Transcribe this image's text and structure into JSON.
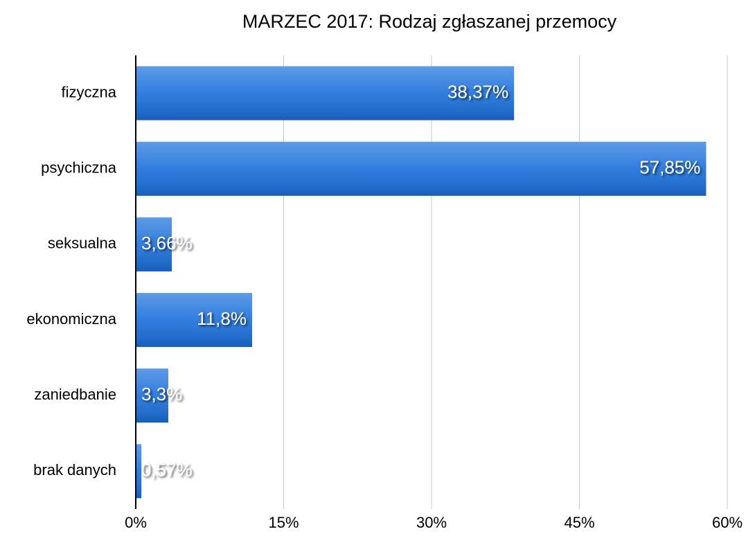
{
  "chart_data": {
    "type": "bar",
    "orientation": "horizontal",
    "title": "MARZEC 2017: Rodzaj zgłaszanej przemocy",
    "categories": [
      "fizyczna",
      "psychiczna",
      "seksualna",
      "ekonomiczna",
      "zaniedbanie",
      "brak danych"
    ],
    "values": [
      38.37,
      57.85,
      3.66,
      11.8,
      3.3,
      0.57
    ],
    "value_labels": [
      "38,37%",
      "57,85%",
      "3,66%",
      "11,8%",
      "3,3%",
      "0,57%"
    ],
    "color": "#1a6fdb",
    "xlim": [
      0,
      60
    ],
    "xticks": [
      {
        "value": 0,
        "label": "0%"
      },
      {
        "value": 15,
        "label": "15%"
      },
      {
        "value": 30,
        "label": "30%"
      },
      {
        "value": 45,
        "label": "45%"
      },
      {
        "value": 60,
        "label": "60%"
      }
    ],
    "grid": true
  }
}
